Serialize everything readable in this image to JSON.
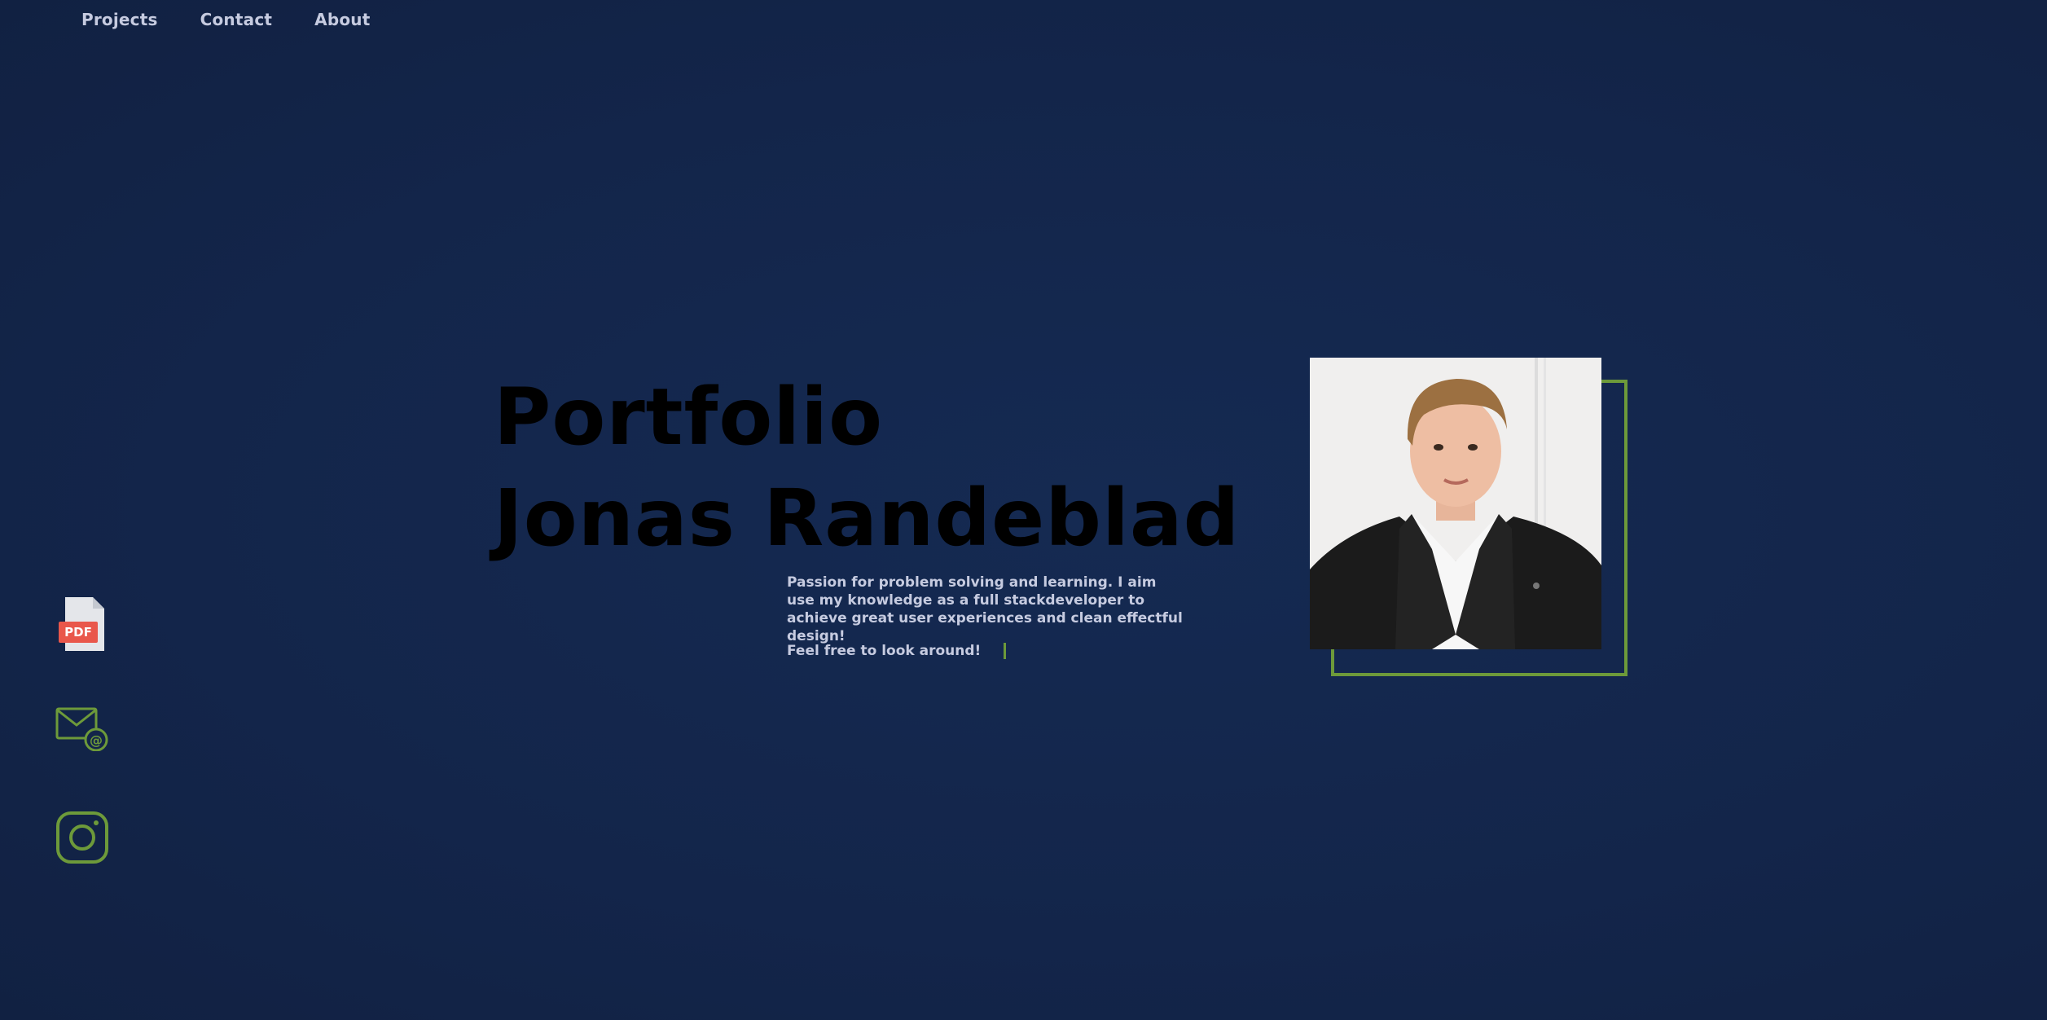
{
  "nav": {
    "items": [
      {
        "label": "Projects"
      },
      {
        "label": "Contact"
      },
      {
        "label": "About"
      }
    ]
  },
  "hero": {
    "title_line1": "Portfolio",
    "title_line2": "Jonas Randeblad",
    "intro": "Passion for problem solving and learning. I aim use my knowledge as a full stackdeveloper to achieve great user experiences and clean effectful design!",
    "cta": "Feel free to look around!"
  },
  "social": {
    "pdf_label": "PDF",
    "icons": [
      "pdf-icon",
      "email-icon",
      "instagram-icon"
    ]
  },
  "colors": {
    "background": "#13254a",
    "accent": "#6d9a3a",
    "nav_text": "#c6cbe0",
    "title": "#000000",
    "pdf_badge": "#e9574b"
  }
}
